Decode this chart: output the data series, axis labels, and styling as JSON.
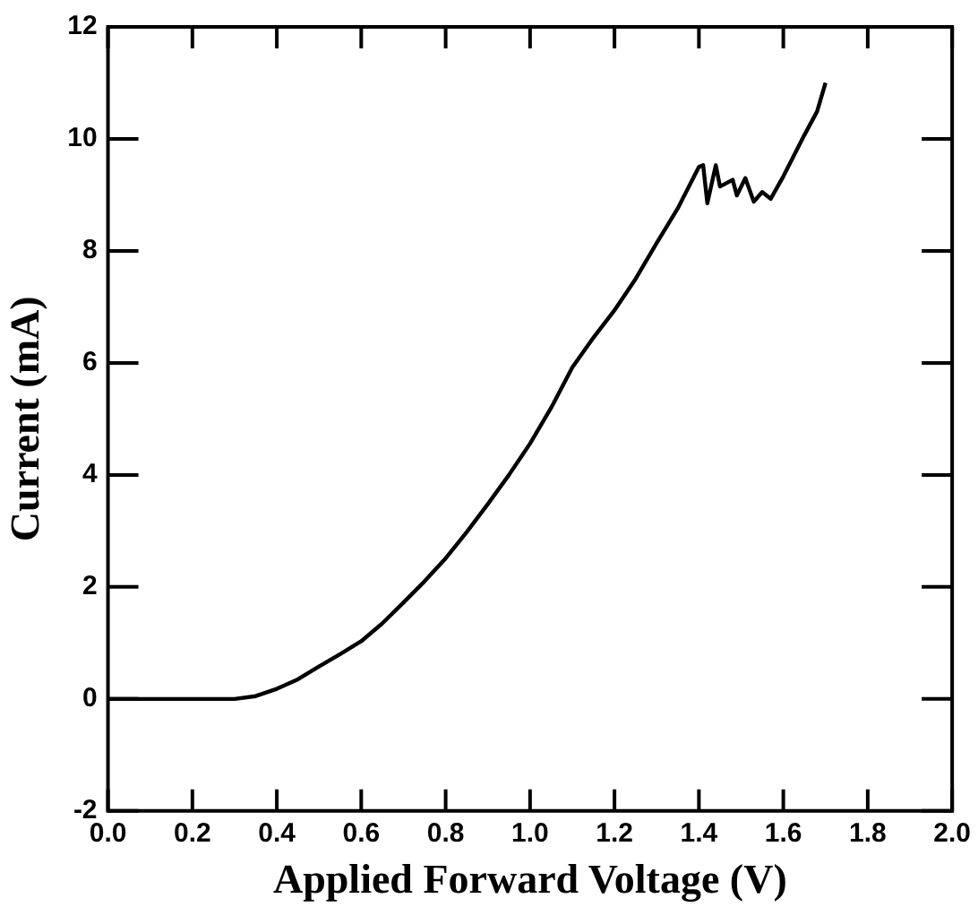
{
  "chart_data": {
    "type": "line",
    "xlabel": "Applied Forward Voltage (V)",
    "ylabel": "Current (mA)",
    "x": [
      0,
      0.1,
      0.2,
      0.3,
      0.35,
      0.4,
      0.45,
      0.5,
      0.55,
      0.6,
      0.65,
      0.7,
      0.75,
      0.8,
      0.85,
      0.9,
      0.95,
      1.0,
      1.05,
      1.1,
      1.15,
      1.2,
      1.25,
      1.3,
      1.35,
      1.4,
      1.41,
      1.42,
      1.44,
      1.45,
      1.48,
      1.49,
      1.51,
      1.53,
      1.55,
      1.57,
      1.6,
      1.65,
      1.68,
      1.7
    ],
    "series": [
      {
        "color": "#000000",
        "values": [
          0,
          0,
          0,
          0,
          0.05,
          0.18,
          0.35,
          0.58,
          0.8,
          1.03,
          1.35,
          1.72,
          2.1,
          2.51,
          2.98,
          3.48,
          4.0,
          4.56,
          5.2,
          5.92,
          6.45,
          6.94,
          7.5,
          8.14,
          8.76,
          9.5,
          9.53,
          8.85,
          9.53,
          9.15,
          9.27,
          8.99,
          9.3,
          8.88,
          9.05,
          8.93,
          9.33,
          10.07,
          10.49,
          11.0
        ]
      }
    ],
    "xlim": [
      0,
      2
    ],
    "ylim": [
      -2,
      12
    ],
    "xticks": [
      {
        "value": 0,
        "label": "0.0"
      },
      {
        "value": 0.2,
        "label": "0.2"
      },
      {
        "value": 0.4,
        "label": "0.4"
      },
      {
        "value": 0.6,
        "label": "0.6"
      },
      {
        "value": 0.8,
        "label": "0.8"
      },
      {
        "value": 1,
        "label": "1.0"
      },
      {
        "value": 1.2,
        "label": "1.2"
      },
      {
        "value": 1.4,
        "label": "1.4"
      },
      {
        "value": 1.6,
        "label": "1.6"
      },
      {
        "value": 1.8,
        "label": "1.8"
      },
      {
        "value": 2,
        "label": "2.0"
      }
    ],
    "yticks": [
      -2,
      0,
      2,
      4,
      6,
      8,
      10,
      12
    ],
    "grid": false,
    "legend": false,
    "marker": "none",
    "line_style": "solid"
  }
}
